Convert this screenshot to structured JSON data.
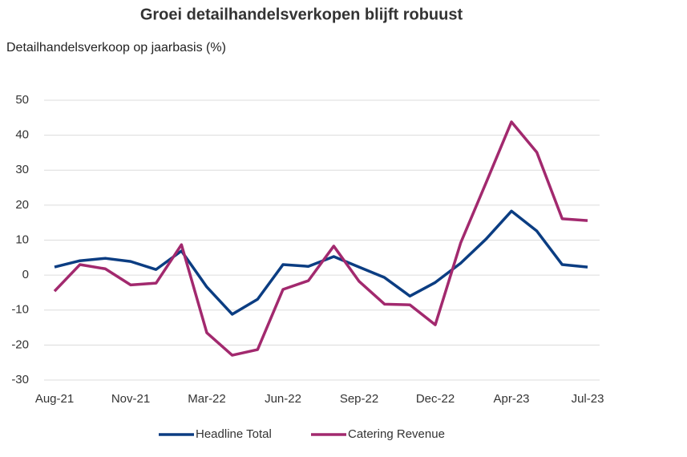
{
  "chart_data": {
    "type": "line",
    "title": "Groei detailhandelsverkopen blijft robuust",
    "subtitle": "Detailhandelsverkoop op jaarbasis (%)",
    "categories": [
      "Aug-21",
      null,
      null,
      "Nov-21",
      null,
      null,
      "Mar-22",
      null,
      null,
      "Jun-22",
      null,
      null,
      "Sep-22",
      null,
      null,
      "Dec-22",
      null,
      null,
      "Apr-23",
      null,
      null,
      "Jul-23"
    ],
    "series": [
      {
        "name": "Headline Total",
        "color": "#0b3d82",
        "values": [
          2.3,
          4.1,
          4.8,
          3.9,
          1.6,
          6.9,
          -3.4,
          -11.2,
          -6.9,
          3.0,
          2.5,
          5.3,
          2.3,
          -0.7,
          -6.0,
          -2.1,
          3.4,
          10.3,
          18.3,
          12.6,
          3.0,
          2.3
        ]
      },
      {
        "name": "Catering Revenue",
        "color": "#a2296e",
        "values": [
          -4.6,
          3.0,
          1.8,
          -2.8,
          -2.3,
          8.7,
          -16.5,
          -22.9,
          -21.3,
          -4.1,
          -1.6,
          8.3,
          -1.8,
          -8.3,
          -8.5,
          -14.2,
          9.2,
          26.4,
          43.8,
          35.1,
          16.1,
          15.6
        ]
      }
    ],
    "ylim": [
      -30,
      50
    ],
    "yticks": [
      -30,
      -20,
      -10,
      0,
      10,
      20,
      30,
      40,
      50
    ],
    "grid": true,
    "legend": "bottom"
  }
}
